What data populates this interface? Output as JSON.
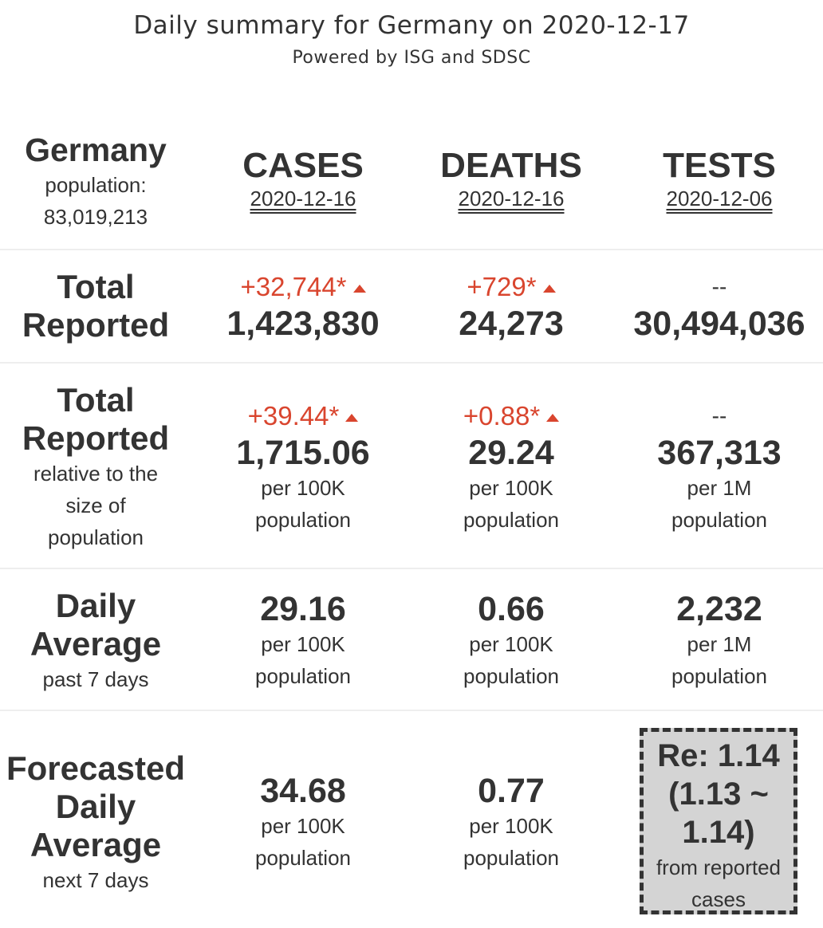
{
  "header": {
    "title": "Daily summary for Germany on 2020-12-17",
    "subtitle": "Powered by ISG and SDSC"
  },
  "country": {
    "name": "Germany",
    "population_label": "population:",
    "population_value": "83,019,213"
  },
  "columns": [
    {
      "label": "CASES",
      "date": "2020-12-16"
    },
    {
      "label": "DEATHS",
      "date": "2020-12-16"
    },
    {
      "label": "TESTS",
      "date": "2020-12-06"
    }
  ],
  "rows": {
    "total_reported": {
      "label_line1": "Total",
      "label_line2": "Reported",
      "cases": {
        "change": "+32,744*",
        "value": "1,423,830"
      },
      "deaths": {
        "change": "+729*",
        "value": "24,273"
      },
      "tests": {
        "change": "--",
        "value": "30,494,036"
      }
    },
    "total_relative": {
      "label_line1": "Total",
      "label_line2": "Reported",
      "sub_line1": "relative to the",
      "sub_line2": "size of",
      "sub_line3": "population",
      "cases": {
        "change": "+39.44*",
        "value": "1,715.06",
        "unit1": "per 100K",
        "unit2": "population"
      },
      "deaths": {
        "change": "+0.88*",
        "value": "29.24",
        "unit1": "per 100K",
        "unit2": "population"
      },
      "tests": {
        "change": "--",
        "value": "367,313",
        "unit1": "per 1M",
        "unit2": "population"
      }
    },
    "daily_average": {
      "label_line1": "Daily",
      "label_line2": "Average",
      "sub_line1": "past 7 days",
      "cases": {
        "value": "29.16",
        "unit1": "per 100K",
        "unit2": "population"
      },
      "deaths": {
        "value": "0.66",
        "unit1": "per 100K",
        "unit2": "population"
      },
      "tests": {
        "value": "2,232",
        "unit1": "per 1M",
        "unit2": "population"
      }
    },
    "forecast": {
      "label_line1": "Forecasted",
      "label_line2": "Daily",
      "label_line3": "Average",
      "sub_line1": "next 7 days",
      "cases": {
        "value": "34.68",
        "unit1": "per 100K",
        "unit2": "population"
      },
      "deaths": {
        "value": "0.77",
        "unit1": "per 100K",
        "unit2": "population"
      }
    }
  },
  "re_box": {
    "line1": "Re: 1.14",
    "line2": "(1.13 ~",
    "line3": "1.14)",
    "sub1": "from reported",
    "sub2": "cases"
  },
  "colors": {
    "text": "#333333",
    "increase": "#d9452e",
    "re_box_bg": "#d4d4d4",
    "divider": "#eeeeee"
  },
  "icons": {
    "increase": "triangle-up-icon"
  }
}
